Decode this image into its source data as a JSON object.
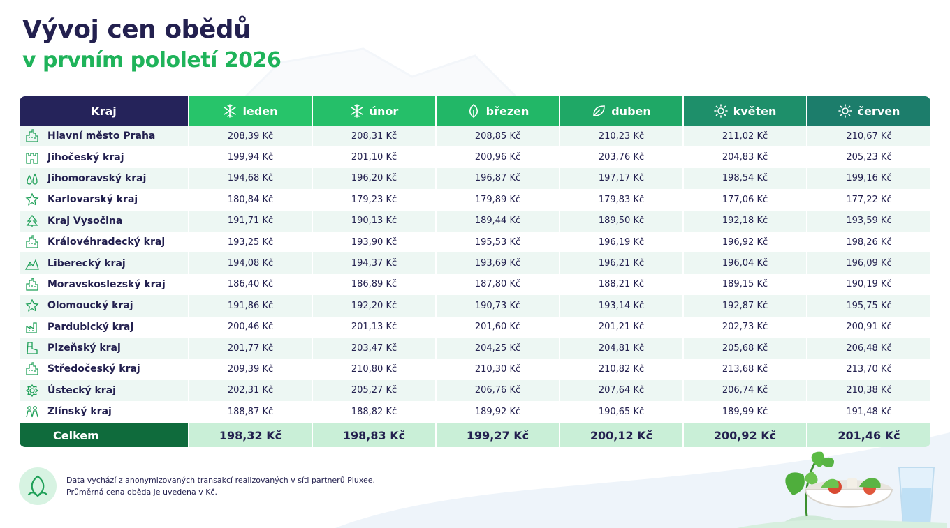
{
  "title": {
    "line1": "Vývoj cen obědů",
    "line2": "v prvním pololetí 2026"
  },
  "table": {
    "region_header": "Kraj",
    "months": [
      {
        "label": "leden",
        "icon": "snowflake-icon"
      },
      {
        "label": "únor",
        "icon": "snowflake-icon"
      },
      {
        "label": "březen",
        "icon": "sprout-icon"
      },
      {
        "label": "duben",
        "icon": "leaf-icon"
      },
      {
        "label": "květen",
        "icon": "sun-icon"
      },
      {
        "label": "červen",
        "icon": "sun-icon"
      }
    ],
    "rows": [
      {
        "region": "Hlavní město Praha",
        "icon": "city-icon",
        "values": [
          "208,39 Kč",
          "208,31 Kč",
          "208,85 Kč",
          "210,23 Kč",
          "211,02 Kč",
          "210,67 Kč"
        ]
      },
      {
        "region": "Jihočeský kraj",
        "icon": "castle-icon",
        "values": [
          "199,94 Kč",
          "201,10 Kč",
          "200,96 Kč",
          "203,76 Kč",
          "204,83 Kč",
          "205,23 Kč"
        ]
      },
      {
        "region": "Jihomoravský kraj",
        "icon": "drops-icon",
        "values": [
          "194,68 Kč",
          "196,20 Kč",
          "196,87 Kč",
          "197,17 Kč",
          "198,54 Kč",
          "199,16 Kč"
        ]
      },
      {
        "region": "Karlovarský kraj",
        "icon": "star-icon",
        "values": [
          "180,84 Kč",
          "179,23 Kč",
          "179,89 Kč",
          "179,83 Kč",
          "177,06 Kč",
          "177,22 Kč"
        ]
      },
      {
        "region": "Kraj Vysočina",
        "icon": "tree-icon",
        "values": [
          "191,71 Kč",
          "190,13 Kč",
          "189,44 Kč",
          "189,50 Kč",
          "192,18 Kč",
          "193,59 Kč"
        ]
      },
      {
        "region": "Královéhradecký kraj",
        "icon": "city-icon",
        "values": [
          "193,25 Kč",
          "193,90 Kč",
          "195,53 Kč",
          "196,19 Kč",
          "196,92 Kč",
          "198,26 Kč"
        ]
      },
      {
        "region": "Liberecký kraj",
        "icon": "mountain-icon",
        "values": [
          "194,08 Kč",
          "194,37 Kč",
          "193,69 Kč",
          "196,21 Kč",
          "196,04 Kč",
          "196,09 Kč"
        ]
      },
      {
        "region": "Moravskoslezský kraj",
        "icon": "city-icon",
        "values": [
          "186,40 Kč",
          "186,89 Kč",
          "187,80 Kč",
          "188,21 Kč",
          "189,15 Kč",
          "190,19 Kč"
        ]
      },
      {
        "region": "Olomoucký kraj",
        "icon": "star-icon",
        "values": [
          "191,86 Kč",
          "192,20 Kč",
          "190,73 Kč",
          "193,14 Kč",
          "192,87 Kč",
          "195,75 Kč"
        ]
      },
      {
        "region": "Pardubický kraj",
        "icon": "factory-icon",
        "values": [
          "200,46 Kč",
          "201,13 Kč",
          "201,60 Kč",
          "201,21 Kč",
          "202,73 Kč",
          "200,91 Kč"
        ]
      },
      {
        "region": "Plzeňský kraj",
        "icon": "boot-icon",
        "values": [
          "201,77 Kč",
          "203,47 Kč",
          "204,25 Kč",
          "204,81 Kč",
          "205,68 Kč",
          "206,48 Kč"
        ]
      },
      {
        "region": "Středočeský kraj",
        "icon": "city-icon",
        "values": [
          "209,39 Kč",
          "210,80 Kč",
          "210,30 Kč",
          "210,82 Kč",
          "213,68 Kč",
          "213,70 Kč"
        ]
      },
      {
        "region": "Ústecký kraj",
        "icon": "gear-icon",
        "values": [
          "202,31 Kč",
          "205,27 Kč",
          "206,76 Kč",
          "207,64 Kč",
          "206,74 Kč",
          "210,38 Kč"
        ]
      },
      {
        "region": "Zlínský kraj",
        "icon": "people-icon",
        "values": [
          "188,87 Kč",
          "188,82 Kč",
          "189,92 Kč",
          "190,65 Kč",
          "189,99 Kč",
          "191,48 Kč"
        ]
      }
    ],
    "total": {
      "label": "Celkem",
      "values": [
        "198,32 Kč",
        "198,83 Kč",
        "199,27 Kč",
        "200,12 Kč",
        "200,92 Kč",
        "201,46 Kč"
      ]
    }
  },
  "footer": {
    "line1": "Data vychází z anonymizovaných transakcí realizovaných v síti partnerů Pluxee.",
    "line2": "Průměrná cena oběda je uvedena v Kč."
  },
  "colors": {
    "navy": "#25235a",
    "green": "#1fb35a",
    "dark_green": "#0f6b3c",
    "row_tint": "#edf7f3",
    "total_tint": "#c9efd7"
  }
}
